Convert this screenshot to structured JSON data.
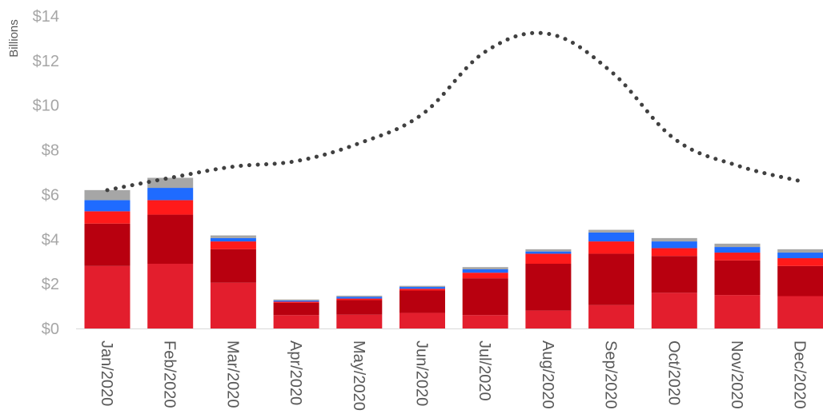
{
  "chart_data": {
    "type": "bar",
    "ylabel": "Billions",
    "ylim": [
      0,
      14
    ],
    "y_ticks": [
      "$0",
      "$2",
      "$4",
      "$6",
      "$8",
      "$10",
      "$12",
      "$14"
    ],
    "y_tick_values": [
      0,
      2,
      4,
      6,
      8,
      10,
      12,
      14
    ],
    "categories": [
      "Jan/2020",
      "Feb/2020",
      "Mar/2020",
      "Apr/2020",
      "May/2020",
      "Jun/2020",
      "Jul/2020",
      "Aug/2020",
      "Sep/2020",
      "Oct/2020",
      "Nov/2020",
      "Dec/2020"
    ],
    "stacked": true,
    "grid": false,
    "legend": "none",
    "series": [
      {
        "color": "#e31e2d",
        "values": [
          2.8,
          2.9,
          2.05,
          0.6,
          0.62,
          0.7,
          0.6,
          0.8,
          1.05,
          1.6,
          1.5,
          1.45
        ]
      },
      {
        "color": "#b8000f",
        "values": [
          1.9,
          2.2,
          1.5,
          0.55,
          0.65,
          1.0,
          1.65,
          2.1,
          2.3,
          1.65,
          1.55,
          1.35
        ]
      },
      {
        "color": "#ff1a1a",
        "values": [
          0.55,
          0.65,
          0.35,
          0.05,
          0.07,
          0.08,
          0.25,
          0.45,
          0.55,
          0.35,
          0.35,
          0.35
        ]
      },
      {
        "color": "#1f6bff",
        "values": [
          0.5,
          0.55,
          0.15,
          0.05,
          0.08,
          0.08,
          0.15,
          0.1,
          0.4,
          0.3,
          0.25,
          0.25
        ]
      },
      {
        "color": "#a6a6a6",
        "values": [
          0.45,
          0.45,
          0.12,
          0.05,
          0.05,
          0.05,
          0.1,
          0.1,
          0.12,
          0.15,
          0.15,
          0.15
        ]
      }
    ],
    "line_series": {
      "style": "dotted",
      "color": "#404040",
      "values": [
        6.2,
        6.75,
        7.25,
        7.5,
        8.3,
        9.6,
        12.4,
        13.2,
        11.5,
        8.5,
        7.3,
        6.6
      ]
    }
  }
}
